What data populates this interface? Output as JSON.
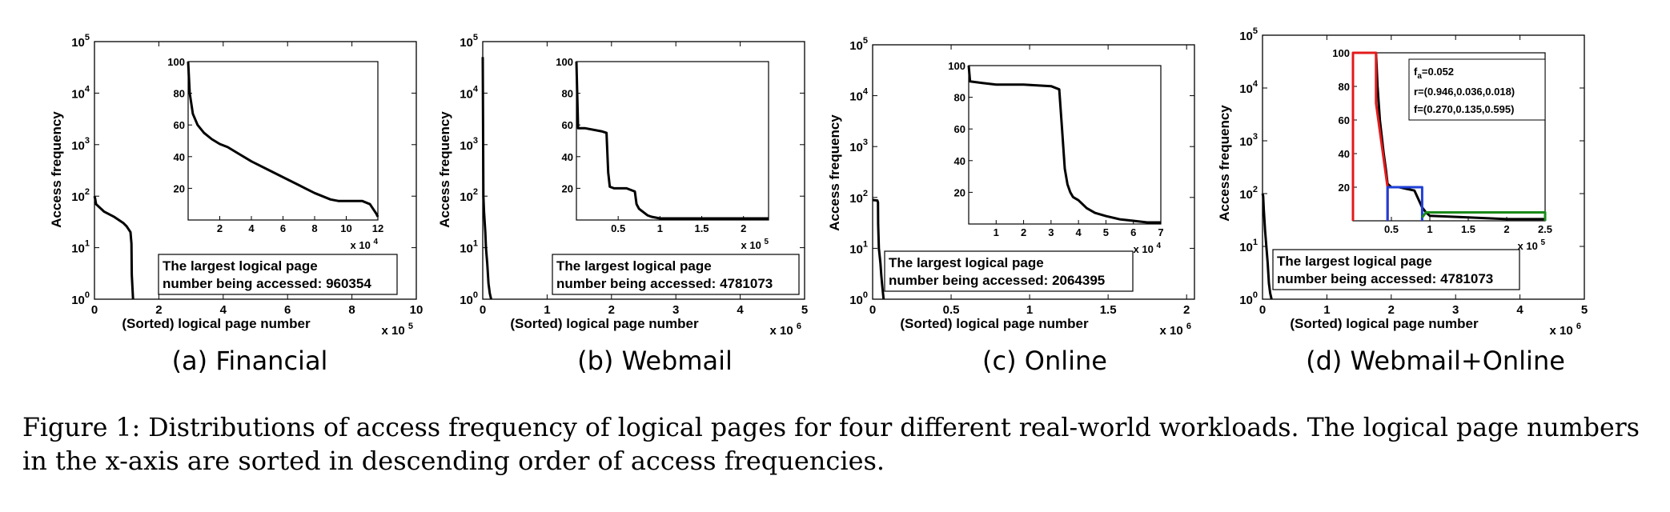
{
  "figure_caption": {
    "line1": "Figure 1: Distributions of access frequency of logical pages for four different real-world workloads. The logical page numbers",
    "line2": "in the x-axis are sorted in descending order of access frequencies."
  },
  "chart_data": [
    {
      "type": "line",
      "caption": "(a) Financial",
      "xlabel": "(Sorted) logical page number",
      "ylabel": "Access frequency",
      "x_multiplier": "x 10",
      "x_multiplier_exp": "5",
      "xlim": [
        0,
        10
      ],
      "xticks": [
        "0",
        "2",
        "4",
        "6",
        "8",
        "10"
      ],
      "yscale": "log",
      "ylim": [
        1,
        100000
      ],
      "yticks": [
        {
          "base": "10",
          "exp": "0"
        },
        {
          "base": "10",
          "exp": "1"
        },
        {
          "base": "10",
          "exp": "2"
        },
        {
          "base": "10",
          "exp": "3"
        },
        {
          "base": "10",
          "exp": "4"
        },
        {
          "base": "10",
          "exp": "5"
        }
      ],
      "annotation": {
        "line1": "The largest logical page",
        "line2": "number being accessed: 960354"
      },
      "series": [
        {
          "color": "#000000",
          "x": [
            0,
            0.02,
            0.05,
            0.3,
            0.6,
            0.9,
            1.0,
            1.12,
            1.15,
            1.16,
            1.2
          ],
          "y": [
            100,
            90,
            70,
            50,
            40,
            30,
            26,
            20,
            12,
            3,
            1
          ]
        }
      ],
      "inset": {
        "type": "line",
        "xlim": [
          0,
          12
        ],
        "ylim": [
          0,
          100
        ],
        "xticks": [
          "2",
          "4",
          "6",
          "8",
          "10",
          "12"
        ],
        "yticks": [
          "20",
          "40",
          "60",
          "80",
          "100"
        ],
        "x_multiplier": "x 10",
        "x_multiplier_exp": "4",
        "series": [
          {
            "color": "#000000",
            "x": [
              0,
              0.1,
              0.3,
              0.6,
              1.0,
              1.5,
              2.0,
              2.5,
              3.0,
              4.0,
              5.0,
              6.0,
              7.0,
              8.0,
              9.0,
              9.5,
              10.0,
              11.0,
              11.5,
              11.9,
              12.0
            ],
            "y": [
              100,
              80,
              67,
              60,
              55,
              51,
              48,
              46,
              43,
              37,
              32,
              27,
              22,
              17,
              13,
              12,
              12,
              12,
              10,
              4,
              2
            ]
          }
        ]
      }
    },
    {
      "type": "line",
      "caption": "(b) Webmail",
      "xlabel": "(Sorted) logical page number",
      "ylabel": "Access frequency",
      "x_multiplier": "x 10",
      "x_multiplier_exp": "6",
      "xlim": [
        0,
        5
      ],
      "xticks": [
        "0",
        "1",
        "2",
        "3",
        "4",
        "5"
      ],
      "yscale": "log",
      "ylim": [
        1,
        100000
      ],
      "yticks": [
        {
          "base": "10",
          "exp": "0"
        },
        {
          "base": "10",
          "exp": "1"
        },
        {
          "base": "10",
          "exp": "2"
        },
        {
          "base": "10",
          "exp": "3"
        },
        {
          "base": "10",
          "exp": "4"
        },
        {
          "base": "10",
          "exp": "5"
        }
      ],
      "annotation": {
        "line1": "The largest logical page",
        "line2": "number being accessed: 4781073"
      },
      "series": [
        {
          "color": "#000000",
          "x": [
            0,
            0.01,
            0.02,
            0.04,
            0.05,
            0.07,
            0.09,
            0.11,
            0.13
          ],
          "y": [
            50000,
            100,
            50,
            20,
            10,
            5,
            2,
            1.3,
            1
          ]
        }
      ],
      "inset": {
        "type": "line",
        "xlim": [
          0,
          2.3
        ],
        "ylim": [
          0,
          100
        ],
        "xticks": [
          "0.5",
          "1",
          "1.5",
          "2"
        ],
        "yticks": [
          "20",
          "40",
          "60",
          "80",
          "100"
        ],
        "x_multiplier": "x 10",
        "x_multiplier_exp": "5",
        "series": [
          {
            "color": "#000000",
            "x": [
              0,
              0.01,
              0.02,
              0.1,
              0.3,
              0.36,
              0.38,
              0.4,
              0.45,
              0.6,
              0.7,
              0.72,
              0.75,
              0.8,
              0.85,
              0.9,
              1.0,
              1.5,
              2.0,
              2.3
            ],
            "y": [
              100,
              80,
              58,
              58,
              56,
              55,
              30,
              21,
              20,
              20,
              18,
              10,
              7,
              5,
              3,
              2,
              1,
              1,
              1,
              1
            ]
          }
        ]
      }
    },
    {
      "type": "line",
      "caption": "(c) Online",
      "xlabel": "(Sorted) logical page number",
      "ylabel": "Access frequency",
      "x_multiplier": "x 10",
      "x_multiplier_exp": "6",
      "xlim": [
        0,
        2.05
      ],
      "xticks": [
        "0",
        "0.5",
        "1",
        "1.5",
        "2"
      ],
      "yscale": "log",
      "ylim": [
        1,
        100000
      ],
      "yticks": [
        {
          "base": "10",
          "exp": "0"
        },
        {
          "base": "10",
          "exp": "1"
        },
        {
          "base": "10",
          "exp": "2"
        },
        {
          "base": "10",
          "exp": "3"
        },
        {
          "base": "10",
          "exp": "4"
        },
        {
          "base": "10",
          "exp": "5"
        }
      ],
      "annotation": {
        "line1": "The largest logical page",
        "line2": "number being accessed: 2064395"
      },
      "series": [
        {
          "color": "#000000",
          "x": [
            0,
            0.01,
            0.03,
            0.034,
            0.035,
            0.04,
            0.05,
            0.055,
            0.06,
            0.07
          ],
          "y": [
            90,
            88,
            87,
            80,
            30,
            10,
            5,
            3,
            2,
            1
          ]
        }
      ],
      "inset": {
        "type": "line",
        "xlim": [
          0,
          7
        ],
        "ylim": [
          0,
          100
        ],
        "xticks": [
          "1",
          "2",
          "3",
          "4",
          "5",
          "6",
          "7"
        ],
        "yticks": [
          "20",
          "40",
          "60",
          "80",
          "100"
        ],
        "x_multiplier": "x 10",
        "x_multiplier_exp": "4",
        "series": [
          {
            "color": "#000000",
            "x": [
              0,
              0.05,
              0.5,
              1.0,
              2.0,
              3.0,
              3.3,
              3.4,
              3.5,
              3.6,
              3.7,
              3.8,
              4.0,
              4.3,
              4.6,
              5.0,
              5.5,
              6.0,
              6.5,
              7.0
            ],
            "y": [
              100,
              90,
              89,
              88,
              88,
              87,
              85,
              60,
              35,
              25,
              20,
              17,
              15,
              10,
              7,
              5,
              3,
              2,
              1,
              1
            ]
          }
        ]
      }
    },
    {
      "type": "line",
      "caption": "(d) Webmail+Online",
      "xlabel": "(Sorted) logical page number",
      "ylabel": "Access frequency",
      "x_multiplier": "x 10",
      "x_multiplier_exp": "6",
      "xlim": [
        0,
        5
      ],
      "xticks": [
        "0",
        "1",
        "2",
        "3",
        "4",
        "5"
      ],
      "yscale": "log",
      "ylim": [
        1,
        100000
      ],
      "yticks": [
        {
          "base": "10",
          "exp": "0"
        },
        {
          "base": "10",
          "exp": "1"
        },
        {
          "base": "10",
          "exp": "2"
        },
        {
          "base": "10",
          "exp": "3"
        },
        {
          "base": "10",
          "exp": "4"
        },
        {
          "base": "10",
          "exp": "5"
        }
      ],
      "annotation": {
        "line1": "The largest logical page",
        "line2": "number being accessed: 4781073"
      },
      "series": [
        {
          "color": "#000000",
          "x": [
            0,
            0.01,
            0.02,
            0.04,
            0.06,
            0.08,
            0.1,
            0.12,
            0.14
          ],
          "y": [
            100,
            90,
            50,
            20,
            10,
            5,
            2,
            1.3,
            1
          ]
        }
      ],
      "inset": {
        "type": "line",
        "xlim": [
          0,
          2.5
        ],
        "ylim": [
          0,
          100
        ],
        "xticks": [
          "0.5",
          "1",
          "1.5",
          "2",
          "2.5"
        ],
        "yticks": [
          "20",
          "40",
          "60",
          "80",
          "100"
        ],
        "x_multiplier": "x 10",
        "x_multiplier_exp": "5",
        "legend_box": {
          "fa_prefix": "f",
          "fa_sub": "a",
          "fa_value": "=0.052",
          "r_text": "r=(0.946,0.036,0.018)",
          "f_text": "f=(0.270,0.135,0.595)"
        },
        "series": [
          {
            "color": "#000000",
            "x": [
              0.3,
              0.32,
              0.35,
              0.4,
              0.43,
              0.45,
              0.5,
              0.6,
              0.7,
              0.8,
              0.9,
              0.95,
              1.0,
              1.5,
              2.0,
              2.5
            ],
            "y": [
              100,
              80,
              60,
              40,
              30,
              22,
              20,
              20,
              19,
              18,
              8,
              5,
              3,
              2,
              1,
              1
            ]
          },
          {
            "color": "#e31a1c",
            "x": [
              0,
              0,
              0.3,
              0.3,
              0.45,
              0.45
            ],
            "y": [
              0,
              100,
              100,
              70,
              20,
              0
            ]
          },
          {
            "color": "#1f3fd6",
            "x": [
              0.45,
              0.45,
              0.9,
              0.9
            ],
            "y": [
              0,
              20,
              20,
              0
            ]
          },
          {
            "color": "#1a8a1a",
            "x": [
              0.9,
              0.95,
              1.0,
              2.5,
              2.5
            ],
            "y": [
              2,
              5,
              5,
              5,
              0
            ]
          }
        ]
      }
    }
  ]
}
